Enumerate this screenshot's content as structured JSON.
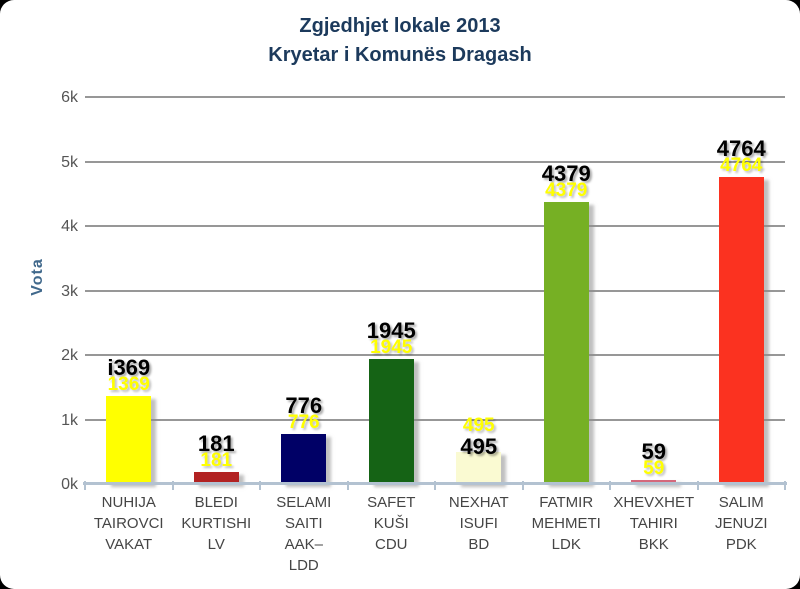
{
  "chart_data": {
    "type": "bar",
    "title_lines": [
      "Zgjedhjet lokale 2013",
      "Kryetar i Komunës Dragash"
    ],
    "ylabel": "Vota",
    "ylim": [
      0,
      6000
    ],
    "ytick_labels": [
      "0k",
      "1k",
      "2k",
      "3k",
      "4k",
      "5k",
      "6k"
    ],
    "grid": "horizontal",
    "legend": "none",
    "categories": [
      "NUHIJA TAIROVCI VAKAT",
      "BLEDI KURTISHI LV",
      "SELAMI SAITI AAK–LDD",
      "SAFET KUŠI CDU",
      "NEXHAT ISUFI BD",
      "FATMIR MEHMETI LDK",
      "XHEVXHET TAHIRI BKK",
      "SALIM JENUZI PDK"
    ],
    "series": [
      {
        "name": "Vota",
        "values": [
          1369,
          181,
          776,
          1945,
          495,
          4379,
          59,
          4764
        ]
      }
    ],
    "bars": [
      {
        "candidate_lines": [
          "NUHIJA",
          "TAIROVCI",
          "VAKAT"
        ],
        "value": 1369,
        "black_label": "i369",
        "yellow_label": "1369",
        "color": "#FFFF00",
        "labels_swapped": false
      },
      {
        "candidate_lines": [
          "BLEDI",
          "KURTISHI",
          "LV"
        ],
        "value": 181,
        "black_label": "181",
        "yellow_label": "181",
        "color": "#B22222",
        "labels_swapped": false
      },
      {
        "candidate_lines": [
          "SELAMI",
          "SAITI",
          "AAK–",
          "LDD"
        ],
        "value": 776,
        "black_label": "776",
        "yellow_label": "776",
        "color": "#000066",
        "labels_swapped": false
      },
      {
        "candidate_lines": [
          "SAFET",
          "KUŠI",
          "CDU"
        ],
        "value": 1945,
        "black_label": "1945",
        "yellow_label": "1945",
        "color": "#156315",
        "labels_swapped": false
      },
      {
        "candidate_lines": [
          "NEXHAT",
          "ISUFI",
          "BD"
        ],
        "value": 495,
        "black_label": "495",
        "yellow_label": "495",
        "color": "#FAFAD2",
        "labels_swapped": true
      },
      {
        "candidate_lines": [
          "FATMIR",
          "MEHMETI",
          "LDK"
        ],
        "value": 4379,
        "black_label": "4379",
        "yellow_label": "4379",
        "color": "#76B024",
        "labels_swapped": false
      },
      {
        "candidate_lines": [
          "XHEVXHET",
          "TAHIRI",
          "BKK"
        ],
        "value": 59,
        "black_label": "59",
        "yellow_label": "59",
        "color": "#D4687C",
        "labels_swapped": false
      },
      {
        "candidate_lines": [
          "SALIM",
          "JENUZI",
          "PDK"
        ],
        "value": 4764,
        "black_label": "4764",
        "yellow_label": "4764",
        "color": "#FB3220",
        "labels_swapped": false
      }
    ]
  }
}
